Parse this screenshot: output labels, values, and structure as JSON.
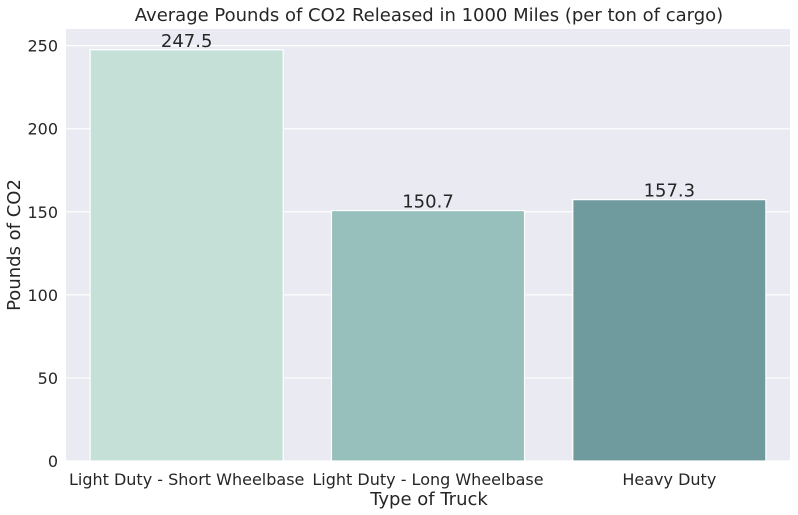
{
  "chart_data": {
    "type": "bar",
    "title": "Average Pounds of CO2 Released in 1000 Miles (per ton of cargo)",
    "xlabel": "Type of Truck",
    "ylabel": "Pounds of CO2",
    "categories": [
      "Light Duty - Short Wheelbase",
      "Light Duty - Long Wheelbase",
      "Heavy Duty"
    ],
    "values": [
      247.5,
      150.7,
      157.3
    ],
    "data_labels": [
      "247.5",
      "150.7",
      "157.3"
    ],
    "colors": [
      "#c5e0d7",
      "#97bfbb",
      "#6f9b9e"
    ],
    "ylim": [
      0,
      260
    ],
    "yticks": [
      0,
      50,
      100,
      150,
      200,
      250
    ],
    "grid": true,
    "background": "#eaeaf2"
  }
}
